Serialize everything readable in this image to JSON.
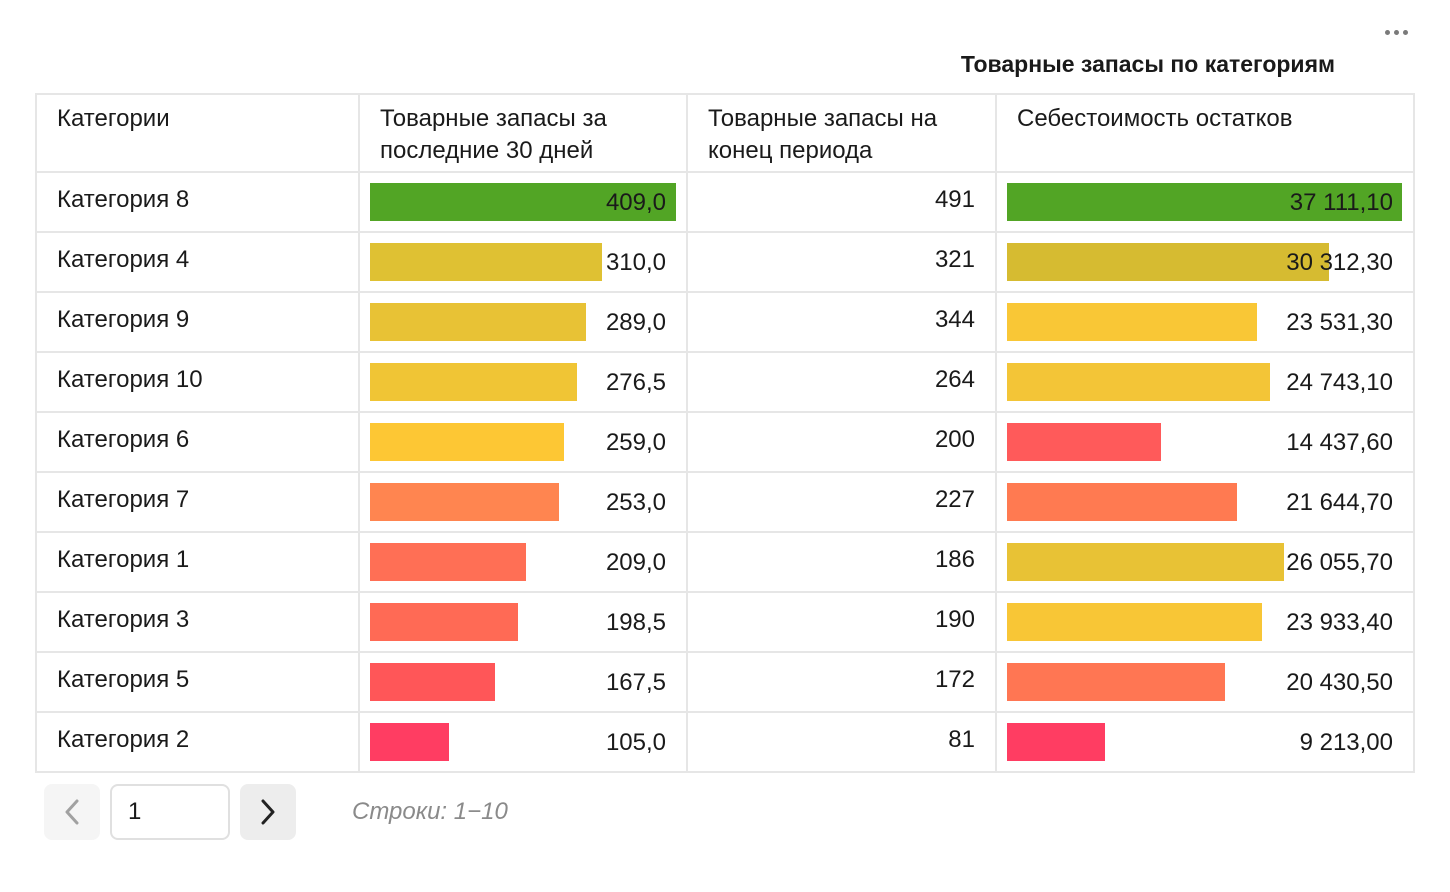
{
  "widget": {
    "title": "Товарные запасы по категориям",
    "menu_icon": "more-dots-icon"
  },
  "table": {
    "columns": [
      "Категории",
      "Товарные запасы за последние 30 дней",
      "Товарные запасы на конец периода",
      "Себестоимость остатков"
    ],
    "rows": [
      {
        "category": "Категория 8",
        "stock30": "409,0",
        "stockEnd": "491",
        "cost": "37 111,10",
        "stock30_fill": 1.0,
        "cost_fill": 1.0,
        "stock30_color": "#52a525",
        "cost_color": "#52a525"
      },
      {
        "category": "Категория 4",
        "stock30": "310,0",
        "stockEnd": "321",
        "cost": "30 312,30",
        "stock30_fill": 0.758,
        "cost_fill": 0.816,
        "stock30_color": "#dfc133",
        "cost_color": "#d6bb31"
      },
      {
        "category": "Категория 9",
        "stock30": "289,0",
        "stockEnd": "344",
        "cost": "23 531,30",
        "stock30_fill": 0.706,
        "cost_fill": 0.634,
        "stock30_color": "#e8c235",
        "cost_color": "#f9c736"
      },
      {
        "category": "Категория 10",
        "stock30": "276,5",
        "stockEnd": "264",
        "cost": "24 743,10",
        "stock30_fill": 0.676,
        "cost_fill": 0.667,
        "stock30_color": "#f0c535",
        "cost_color": "#f3c537"
      },
      {
        "category": "Категория 6",
        "stock30": "259,0",
        "stockEnd": "200",
        "cost": "14 437,60",
        "stock30_fill": 0.633,
        "cost_fill": 0.389,
        "stock30_color": "#fdc734",
        "cost_color": "#ff5a5a"
      },
      {
        "category": "Категория 7",
        "stock30": "253,0",
        "stockEnd": "227",
        "cost": "21 644,70",
        "stock30_fill": 0.618,
        "cost_fill": 0.583,
        "stock30_color": "#ff8550",
        "cost_color": "#ff7a51"
      },
      {
        "category": "Категория 1",
        "stock30": "209,0",
        "stockEnd": "186",
        "cost": "26 055,70",
        "stock30_fill": 0.511,
        "cost_fill": 0.702,
        "stock30_color": "#ff6f55",
        "cost_color": "#e8c235"
      },
      {
        "category": "Категория 3",
        "stock30": "198,5",
        "stockEnd": "190",
        "cost": "23 933,40",
        "stock30_fill": 0.485,
        "cost_fill": 0.645,
        "stock30_color": "#ff6a55",
        "cost_color": "#f8c636"
      },
      {
        "category": "Категория 5",
        "stock30": "167,5",
        "stockEnd": "172",
        "cost": "20 430,50",
        "stock30_fill": 0.409,
        "cost_fill": 0.551,
        "stock30_color": "#ff5658",
        "cost_color": "#ff7653"
      },
      {
        "category": "Категория 2",
        "stock30": "105,0",
        "stockEnd": "81",
        "cost": "9 213,00",
        "stock30_fill": 0.257,
        "cost_fill": 0.248,
        "stock30_color": "#ff3d62",
        "cost_color": "#ff3d62"
      }
    ]
  },
  "pagination": {
    "prev_icon": "chevron-left-icon",
    "next_icon": "chevron-right-icon",
    "page_value": "1",
    "rows_info": "Строки: 1−10"
  }
}
